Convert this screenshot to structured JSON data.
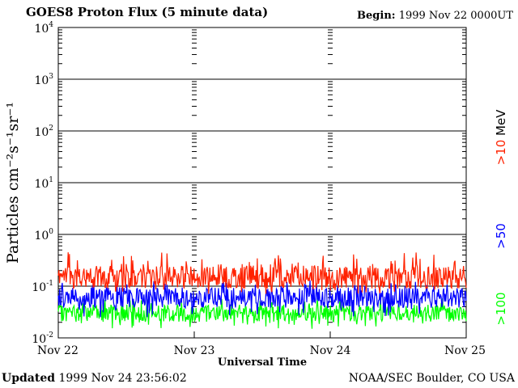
{
  "title": "GOES8 Proton Flux (5 minute data)",
  "begin": {
    "label": "Begin:",
    "value": "1999 Nov 22 0000UT"
  },
  "footer": {
    "updated_label": "Updated",
    "updated_value": "1999 Nov 24 23:56:02",
    "org": "NOAA/SEC Boulder, CO USA"
  },
  "chart_data": {
    "type": "line",
    "title": "GOES8 Proton Flux (5 minute data)",
    "xlabel": "Universal Time",
    "ylabel": "Particles cm⁻²s⁻¹sr⁻¹",
    "yscale": "log",
    "ylim": [
      0.01,
      10000
    ],
    "y_ticks": [
      {
        "base": "10",
        "exp": "-2"
      },
      {
        "base": "10",
        "exp": "-1"
      },
      {
        "base": "10",
        "exp": "0"
      },
      {
        "base": "10",
        "exp": "1"
      },
      {
        "base": "10",
        "exp": "2"
      },
      {
        "base": "10",
        "exp": "3"
      },
      {
        "base": "10",
        "exp": "4"
      }
    ],
    "categories": [
      "Nov 22",
      "Nov 23",
      "Nov 24",
      "Nov 25"
    ],
    "grid": true,
    "series": [
      {
        "name": ">10 MeV",
        "label": ">10",
        "unit": "MeV",
        "color": "#ff2200",
        "typical": 0.15,
        "range": [
          0.07,
          0.45
        ]
      },
      {
        "name": ">50",
        "label": ">50",
        "color": "#0000ff",
        "typical": 0.06,
        "range": [
          0.025,
          0.13
        ]
      },
      {
        "name": ">100",
        "label": ">100",
        "color": "#00ff00",
        "typical": 0.03,
        "range": [
          0.015,
          0.06
        ]
      }
    ]
  }
}
